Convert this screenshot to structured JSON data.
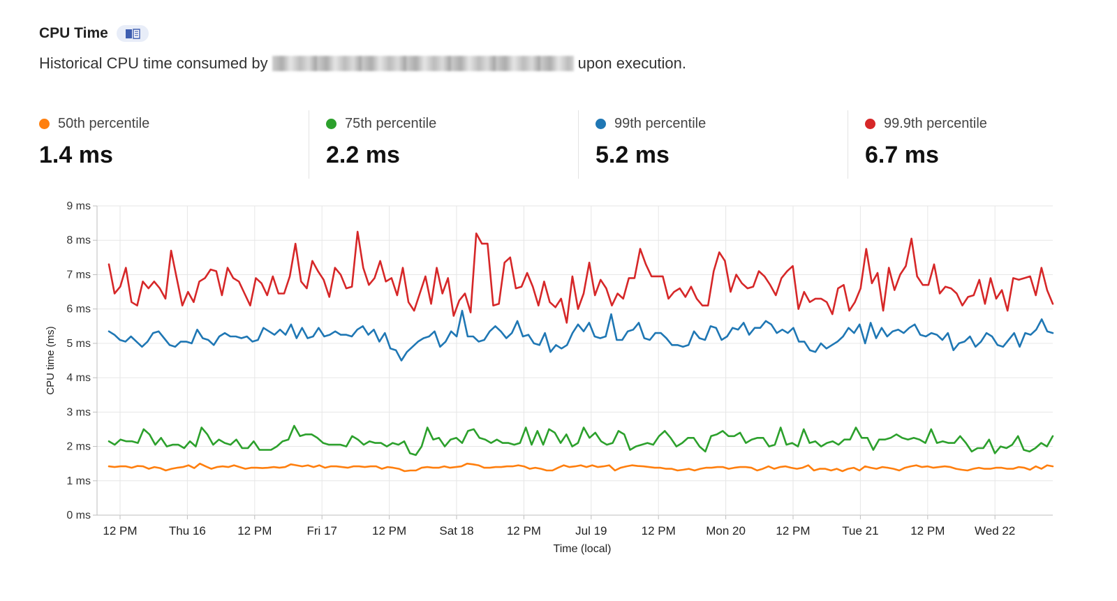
{
  "header": {
    "title": "CPU Time",
    "subtitle_before": "Historical CPU time consumed by",
    "subtitle_after": "upon execution."
  },
  "stats": [
    {
      "label": "50th percentile",
      "value": "1.4 ms",
      "color": "#ff7f0e"
    },
    {
      "label": "75th percentile",
      "value": "2.2 ms",
      "color": "#2ca02c"
    },
    {
      "label": "99th percentile",
      "value": "5.2 ms",
      "color": "#1f77b4"
    },
    {
      "label": "99.9th percentile",
      "value": "6.7 ms",
      "color": "#d62728"
    }
  ],
  "chart_data": {
    "type": "line",
    "xlabel": "Time (local)",
    "ylabel": "CPU time (ms)",
    "ylim": [
      0,
      9
    ],
    "y_ticks": [
      "0 ms",
      "1 ms",
      "2 ms",
      "3 ms",
      "4 ms",
      "5 ms",
      "6 ms",
      "7 ms",
      "8 ms",
      "9 ms"
    ],
    "x_ticks": [
      "12 PM",
      "Thu 16",
      "12 PM",
      "Fri 17",
      "12 PM",
      "Sat 18",
      "12 PM",
      "Jul 19",
      "12 PM",
      "Mon 20",
      "12 PM",
      "Tue 21",
      "12 PM",
      "Wed 22"
    ],
    "grid": true,
    "series": [
      {
        "name": "99.9th percentile",
        "color": "#d62728",
        "values": [
          7.3,
          6.45,
          6.65,
          7.2,
          6.2,
          6.1,
          6.8,
          6.6,
          6.8,
          6.6,
          6.3,
          7.7,
          6.9,
          6.1,
          6.5,
          6.2,
          6.8,
          6.9,
          7.15,
          7.1,
          6.4,
          7.2,
          6.9,
          6.8,
          6.45,
          6.1,
          6.9,
          6.75,
          6.4,
          6.95,
          6.45,
          6.45,
          6.95,
          7.9,
          6.8,
          6.6,
          7.4,
          7.1,
          6.85,
          6.35,
          7.2,
          7.0,
          6.6,
          6.65,
          8.25,
          7.2,
          6.7,
          6.9,
          7.4,
          6.8,
          6.9,
          6.4,
          7.2,
          6.2,
          5.95,
          6.45,
          6.95,
          6.15,
          7.2,
          6.45,
          6.9,
          5.8,
          6.25,
          6.45,
          5.9,
          8.2,
          7.9,
          7.9,
          6.1,
          6.15,
          7.35,
          7.5,
          6.6,
          6.65,
          7.05,
          6.65,
          6.1,
          6.8,
          6.2,
          6.05,
          6.3,
          5.6,
          6.95,
          6.0,
          6.45,
          7.35,
          6.4,
          6.85,
          6.6,
          6.1,
          6.45,
          6.3,
          6.9,
          6.9,
          7.75,
          7.3,
          6.95,
          6.95,
          6.95,
          6.3,
          6.5,
          6.6,
          6.35,
          6.65,
          6.3,
          6.1,
          6.1,
          7.1,
          7.65,
          7.4,
          6.5,
          7.0,
          6.75,
          6.6,
          6.65,
          7.1,
          6.95,
          6.7,
          6.4,
          6.9,
          7.1,
          7.25,
          6.0,
          6.5,
          6.2,
          6.3,
          6.3,
          6.2,
          5.85,
          6.6,
          6.7,
          5.95,
          6.2,
          6.6,
          7.75,
          6.75,
          7.05,
          5.95,
          7.2,
          6.55,
          7.0,
          7.25,
          8.05,
          6.95,
          6.7,
          6.7,
          7.3,
          6.45,
          6.65,
          6.6,
          6.45,
          6.1,
          6.35,
          6.4,
          6.85,
          6.15,
          6.9,
          6.3,
          6.55,
          5.95,
          6.9,
          6.85,
          6.9,
          6.95,
          6.4,
          7.2,
          6.55,
          6.15
        ]
      },
      {
        "name": "99th percentile",
        "color": "#1f77b4",
        "values": [
          5.35,
          5.25,
          5.1,
          5.05,
          5.2,
          5.05,
          4.9,
          5.05,
          5.3,
          5.35,
          5.15,
          4.95,
          4.9,
          5.05,
          5.05,
          5.0,
          5.4,
          5.15,
          5.1,
          4.95,
          5.2,
          5.3,
          5.2,
          5.2,
          5.15,
          5.2,
          5.05,
          5.1,
          5.45,
          5.35,
          5.25,
          5.4,
          5.25,
          5.55,
          5.15,
          5.45,
          5.15,
          5.2,
          5.45,
          5.2,
          5.25,
          5.35,
          5.25,
          5.25,
          5.2,
          5.4,
          5.5,
          5.25,
          5.4,
          5.05,
          5.3,
          4.85,
          4.8,
          4.5,
          4.75,
          4.9,
          5.05,
          5.15,
          5.2,
          5.35,
          4.9,
          5.05,
          5.35,
          5.2,
          5.95,
          5.2,
          5.2,
          5.05,
          5.1,
          5.35,
          5.5,
          5.35,
          5.15,
          5.3,
          5.65,
          5.2,
          5.25,
          5.0,
          4.95,
          5.3,
          4.75,
          4.95,
          4.85,
          4.95,
          5.3,
          5.55,
          5.35,
          5.6,
          5.2,
          5.15,
          5.2,
          5.85,
          5.1,
          5.1,
          5.35,
          5.4,
          5.6,
          5.15,
          5.1,
          5.3,
          5.3,
          5.15,
          4.95,
          4.95,
          4.9,
          4.95,
          5.35,
          5.15,
          5.1,
          5.5,
          5.45,
          5.1,
          5.2,
          5.45,
          5.4,
          5.6,
          5.25,
          5.45,
          5.45,
          5.65,
          5.55,
          5.3,
          5.4,
          5.3,
          5.45,
          5.05,
          5.05,
          4.8,
          4.75,
          5.0,
          4.85,
          4.95,
          5.05,
          5.2,
          5.45,
          5.3,
          5.55,
          5.0,
          5.6,
          5.15,
          5.45,
          5.2,
          5.35,
          5.4,
          5.3,
          5.45,
          5.55,
          5.25,
          5.2,
          5.3,
          5.25,
          5.1,
          5.3,
          4.8,
          5.0,
          5.05,
          5.2,
          4.9,
          5.05,
          5.3,
          5.2,
          4.95,
          4.9,
          5.1,
          5.3,
          4.9,
          5.3,
          5.25,
          5.4,
          5.7,
          5.35,
          5.3
        ]
      },
      {
        "name": "75th percentile",
        "color": "#2ca02c",
        "values": [
          2.15,
          2.05,
          2.2,
          2.15,
          2.15,
          2.1,
          2.5,
          2.35,
          2.05,
          2.25,
          2.0,
          2.05,
          2.05,
          1.95,
          2.15,
          2.0,
          2.55,
          2.35,
          2.05,
          2.2,
          2.1,
          2.05,
          2.2,
          1.95,
          1.95,
          2.15,
          1.9,
          1.9,
          1.9,
          2.0,
          2.15,
          2.2,
          2.6,
          2.3,
          2.35,
          2.35,
          2.25,
          2.1,
          2.05,
          2.05,
          2.05,
          2.0,
          2.3,
          2.2,
          2.05,
          2.15,
          2.1,
          2.1,
          2.0,
          2.1,
          2.05,
          2.15,
          1.8,
          1.75,
          2.0,
          2.55,
          2.2,
          2.25,
          2.0,
          2.2,
          2.25,
          2.1,
          2.45,
          2.5,
          2.25,
          2.2,
          2.1,
          2.2,
          2.1,
          2.1,
          2.05,
          2.1,
          2.55,
          2.05,
          2.45,
          2.05,
          2.5,
          2.4,
          2.1,
          2.35,
          2.0,
          2.1,
          2.55,
          2.25,
          2.4,
          2.15,
          2.05,
          2.1,
          2.45,
          2.35,
          1.9,
          2.0,
          2.05,
          2.1,
          2.05,
          2.3,
          2.45,
          2.25,
          2.0,
          2.1,
          2.25,
          2.25,
          2.0,
          1.85,
          2.3,
          2.35,
          2.45,
          2.3,
          2.3,
          2.4,
          2.1,
          2.2,
          2.25,
          2.25,
          2.0,
          2.05,
          2.55,
          2.05,
          2.1,
          2.0,
          2.5,
          2.1,
          2.15,
          2.0,
          2.1,
          2.15,
          2.05,
          2.2,
          2.2,
          2.55,
          2.25,
          2.25,
          1.9,
          2.2,
          2.2,
          2.25,
          2.35,
          2.25,
          2.2,
          2.25,
          2.2,
          2.1,
          2.5,
          2.1,
          2.15,
          2.1,
          2.1,
          2.3,
          2.1,
          1.85,
          1.95,
          1.95,
          2.2,
          1.8,
          2.0,
          1.95,
          2.05,
          2.3,
          1.9,
          1.85,
          1.95,
          2.1,
          2.0,
          2.3
        ]
      },
      {
        "name": "50th percentile",
        "color": "#ff7f0e",
        "values": [
          1.42,
          1.4,
          1.42,
          1.42,
          1.38,
          1.43,
          1.42,
          1.35,
          1.4,
          1.37,
          1.3,
          1.35,
          1.38,
          1.4,
          1.45,
          1.37,
          1.5,
          1.42,
          1.35,
          1.4,
          1.42,
          1.4,
          1.45,
          1.4,
          1.35,
          1.38,
          1.38,
          1.37,
          1.38,
          1.4,
          1.38,
          1.4,
          1.48,
          1.45,
          1.42,
          1.45,
          1.4,
          1.45,
          1.38,
          1.42,
          1.42,
          1.4,
          1.38,
          1.42,
          1.42,
          1.4,
          1.42,
          1.42,
          1.35,
          1.4,
          1.38,
          1.35,
          1.28,
          1.3,
          1.3,
          1.38,
          1.4,
          1.38,
          1.38,
          1.42,
          1.38,
          1.4,
          1.42,
          1.5,
          1.48,
          1.45,
          1.38,
          1.38,
          1.4,
          1.4,
          1.42,
          1.42,
          1.45,
          1.42,
          1.35,
          1.38,
          1.35,
          1.3,
          1.3,
          1.38,
          1.45,
          1.4,
          1.42,
          1.45,
          1.4,
          1.45,
          1.4,
          1.42,
          1.45,
          1.3,
          1.38,
          1.42,
          1.45,
          1.43,
          1.42,
          1.4,
          1.38,
          1.38,
          1.35,
          1.35,
          1.3,
          1.32,
          1.35,
          1.3,
          1.35,
          1.38,
          1.38,
          1.4,
          1.4,
          1.35,
          1.38,
          1.4,
          1.4,
          1.38,
          1.3,
          1.35,
          1.42,
          1.35,
          1.4,
          1.42,
          1.38,
          1.35,
          1.38,
          1.45,
          1.3,
          1.35,
          1.35,
          1.3,
          1.35,
          1.28,
          1.35,
          1.38,
          1.3,
          1.42,
          1.38,
          1.35,
          1.4,
          1.38,
          1.35,
          1.3,
          1.38,
          1.42,
          1.45,
          1.4,
          1.42,
          1.38,
          1.4,
          1.42,
          1.4,
          1.35,
          1.32,
          1.3,
          1.35,
          1.38,
          1.35,
          1.35,
          1.38,
          1.38,
          1.35,
          1.35,
          1.4,
          1.38,
          1.32,
          1.42,
          1.35,
          1.45,
          1.42
        ]
      }
    ]
  }
}
